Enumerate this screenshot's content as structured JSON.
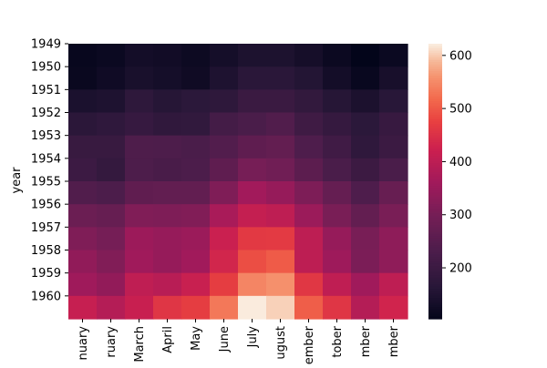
{
  "chart_data": {
    "type": "heatmap",
    "title": "",
    "xlabel": "",
    "ylabel": "year",
    "x_tick_labels_visible": [
      "nuary",
      "ruary",
      "March",
      "April",
      "May",
      "June",
      "July",
      "ugust",
      "ember",
      "tober",
      "mber",
      "mber"
    ],
    "categories": [
      "January",
      "February",
      "March",
      "April",
      "May",
      "June",
      "July",
      "August",
      "September",
      "October",
      "November",
      "December"
    ],
    "rows": [
      "1949",
      "1950",
      "1951",
      "1952",
      "1953",
      "1954",
      "1955",
      "1956",
      "1957",
      "1958",
      "1959",
      "1960"
    ],
    "values": [
      [
        112,
        118,
        132,
        129,
        121,
        135,
        148,
        148,
        136,
        119,
        104,
        118
      ],
      [
        115,
        126,
        141,
        135,
        125,
        149,
        170,
        170,
        158,
        133,
        114,
        140
      ],
      [
        145,
        150,
        178,
        163,
        172,
        178,
        199,
        199,
        184,
        162,
        146,
        166
      ],
      [
        171,
        180,
        193,
        181,
        183,
        218,
        230,
        242,
        209,
        191,
        172,
        194
      ],
      [
        196,
        196,
        236,
        235,
        229,
        243,
        264,
        272,
        237,
        211,
        180,
        201
      ],
      [
        204,
        188,
        235,
        227,
        234,
        264,
        302,
        293,
        259,
        229,
        203,
        229
      ],
      [
        242,
        233,
        267,
        269,
        270,
        315,
        364,
        347,
        312,
        274,
        237,
        278
      ],
      [
        284,
        277,
        317,
        313,
        318,
        374,
        413,
        405,
        355,
        306,
        271,
        306
      ],
      [
        315,
        301,
        356,
        348,
        355,
        422,
        465,
        467,
        404,
        347,
        305,
        336
      ],
      [
        340,
        318,
        362,
        348,
        363,
        435,
        491,
        505,
        404,
        359,
        310,
        337
      ],
      [
        360,
        342,
        406,
        396,
        420,
        472,
        548,
        559,
        463,
        407,
        362,
        405
      ],
      [
        417,
        391,
        419,
        461,
        472,
        535,
        622,
        606,
        508,
        461,
        390,
        432
      ]
    ],
    "colorbar": {
      "vmin": 104,
      "vmax": 622,
      "ticks": [
        "200",
        "300",
        "400",
        "500",
        "600"
      ]
    },
    "colormap": "rocket",
    "grid": false
  }
}
